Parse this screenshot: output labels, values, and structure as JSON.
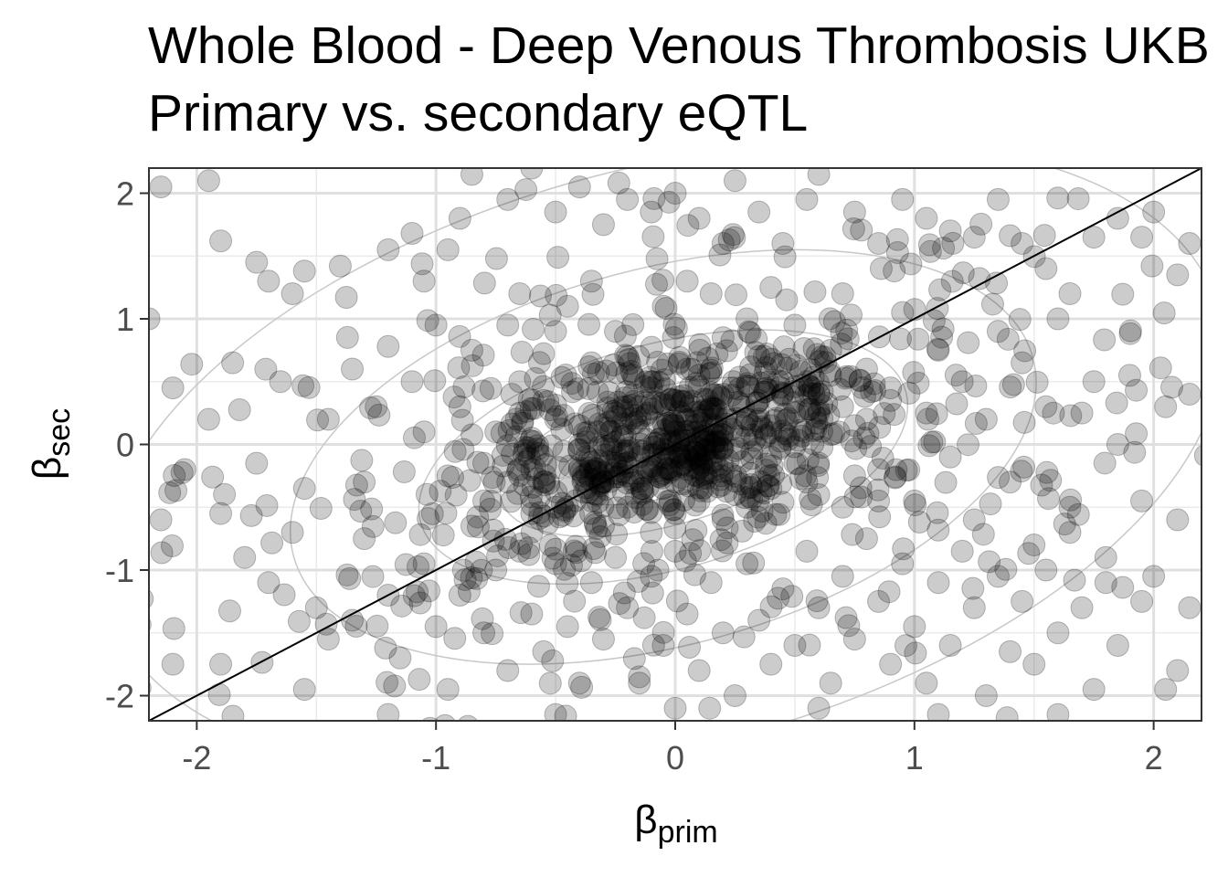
{
  "chart_data": {
    "type": "scatter",
    "title": "Whole Blood - Deep Venous Thrombosis UKB",
    "subtitle": "Primary vs. secondary eQTL",
    "xlabel": {
      "symbol": "β",
      "subscript": "prim"
    },
    "ylabel": {
      "symbol": "β",
      "subscript": "sec"
    },
    "xlim": [
      -2.2,
      2.2
    ],
    "ylim": [
      -2.2,
      2.2
    ],
    "x_ticks": [
      -2,
      -1,
      0,
      1,
      2
    ],
    "y_ticks": [
      -2,
      -1,
      0,
      1,
      2
    ],
    "x_tick_labels": [
      "-2",
      "-1",
      "0",
      "1",
      "2"
    ],
    "y_tick_labels": [
      "-2",
      "-1",
      "0",
      "1",
      "2"
    ],
    "grid": true,
    "reference_line": {
      "slope": 1,
      "intercept": 0,
      "color": "#000000"
    },
    "density_contours": true,
    "point_color": "#000000",
    "point_opacity": 0.2,
    "points_note": "approximately 1200 points; dense cluster near origin",
    "points": [
      [
        -2.15,
        2.05
      ],
      [
        -1.95,
        2.1
      ],
      [
        -1.9,
        1.62
      ],
      [
        -1.75,
        1.45
      ],
      [
        -1.7,
        1.3
      ],
      [
        -1.6,
        1.2
      ],
      [
        -1.55,
        1.38
      ],
      [
        -1.4,
        1.42
      ],
      [
        -1.2,
        1.55
      ],
      [
        -1.1,
        1.68
      ],
      [
        -1.05,
        1.3
      ],
      [
        -0.95,
        1.55
      ],
      [
        -0.9,
        1.8
      ],
      [
        -0.85,
        2.15
      ],
      [
        -0.7,
        1.95
      ],
      [
        -0.6,
        2.2
      ],
      [
        -0.5,
        1.85
      ],
      [
        -0.4,
        2.05
      ],
      [
        -0.3,
        1.75
      ],
      [
        -0.2,
        1.95
      ],
      [
        -0.1,
        1.85
      ],
      [
        0.0,
        2.0
      ],
      [
        0.1,
        1.8
      ],
      [
        0.2,
        1.6
      ],
      [
        0.25,
        2.1
      ],
      [
        0.35,
        1.85
      ],
      [
        0.45,
        1.6
      ],
      [
        0.55,
        1.95
      ],
      [
        0.6,
        2.15
      ],
      [
        0.75,
        1.85
      ],
      [
        0.85,
        1.6
      ],
      [
        0.95,
        1.95
      ],
      [
        1.05,
        1.8
      ],
      [
        1.15,
        1.7
      ],
      [
        1.25,
        1.65
      ],
      [
        1.35,
        1.95
      ],
      [
        1.45,
        1.6
      ],
      [
        1.55,
        1.4
      ],
      [
        1.65,
        1.2
      ],
      [
        1.75,
        1.65
      ],
      [
        1.85,
        1.8
      ],
      [
        1.95,
        1.65
      ],
      [
        2.0,
        1.85
      ],
      [
        2.1,
        1.35
      ],
      [
        2.15,
        1.6
      ],
      [
        -2.2,
        1.0
      ],
      [
        -2.1,
        0.45
      ],
      [
        -1.95,
        0.2
      ],
      [
        -1.85,
        0.65
      ],
      [
        -1.75,
        -0.15
      ],
      [
        -1.65,
        0.5
      ],
      [
        -1.55,
        -0.35
      ],
      [
        -1.45,
        0.2
      ],
      [
        -1.35,
        0.6
      ],
      [
        -1.3,
        -0.3
      ],
      [
        -1.25,
        0.3
      ],
      [
        -1.2,
        0.78
      ],
      [
        -1.1,
        0.5
      ],
      [
        -1.05,
        0.1
      ],
      [
        -1.0,
        0.95
      ],
      [
        -0.95,
        -0.25
      ],
      [
        -0.9,
        0.3
      ],
      [
        -0.85,
        0.75
      ],
      [
        -0.8,
        -0.45
      ],
      [
        -0.75,
        0.1
      ],
      [
        -0.7,
        0.95
      ],
      [
        -0.65,
        0.5
      ],
      [
        -0.6,
        -0.2
      ],
      [
        -0.55,
        0.35
      ],
      [
        -0.5,
        0.9
      ],
      [
        -0.45,
        -0.5
      ],
      [
        -0.4,
        0.15
      ],
      [
        -0.35,
        0.65
      ],
      [
        -0.3,
        -0.3
      ],
      [
        -0.25,
        0.25
      ],
      [
        -0.2,
        0.7
      ],
      [
        -0.15,
        -0.1
      ],
      [
        -0.1,
        0.45
      ],
      [
        -0.05,
        -0.35
      ],
      [
        0.0,
        0.1
      ],
      [
        0.05,
        0.6
      ],
      [
        0.1,
        -0.2
      ],
      [
        0.15,
        0.3
      ],
      [
        0.2,
        0.85
      ],
      [
        0.25,
        -0.4
      ],
      [
        0.3,
        0.2
      ],
      [
        0.35,
        0.7
      ],
      [
        0.4,
        -0.1
      ],
      [
        0.45,
        0.5
      ],
      [
        0.5,
        0.95
      ],
      [
        0.55,
        -0.3
      ],
      [
        0.6,
        0.25
      ],
      [
        0.65,
        0.75
      ],
      [
        0.7,
        -0.5
      ],
      [
        0.75,
        0.15
      ],
      [
        0.8,
        0.6
      ],
      [
        0.85,
        -0.2
      ],
      [
        0.9,
        0.35
      ],
      [
        0.95,
        1.05
      ],
      [
        1.0,
        -0.45
      ],
      [
        1.05,
        0.25
      ],
      [
        1.1,
        0.75
      ],
      [
        1.15,
        -0.1
      ],
      [
        1.2,
        0.5
      ],
      [
        1.25,
        -0.6
      ],
      [
        1.3,
        0.2
      ],
      [
        1.35,
        0.9
      ],
      [
        1.4,
        -0.3
      ],
      [
        1.45,
        0.65
      ],
      [
        1.5,
        -0.8
      ],
      [
        1.55,
        0.3
      ],
      [
        1.6,
        1.0
      ],
      [
        1.65,
        -0.5
      ],
      [
        1.7,
        0.25
      ],
      [
        1.75,
        0.5
      ],
      [
        1.8,
        -0.9
      ],
      [
        1.85,
        0.0
      ],
      [
        1.9,
        0.55
      ],
      [
        1.95,
        -0.45
      ],
      [
        2.05,
        0.3
      ],
      [
        2.1,
        -0.6
      ],
      [
        2.15,
        0.4
      ],
      [
        -2.15,
        -0.6
      ],
      [
        -2.05,
        -0.2
      ],
      [
        -1.9,
        -0.55
      ],
      [
        -1.8,
        -0.9
      ],
      [
        -1.7,
        -1.1
      ],
      [
        -1.6,
        -0.7
      ],
      [
        -1.5,
        -1.3
      ],
      [
        -1.45,
        -1.55
      ],
      [
        -1.35,
        -1.4
      ],
      [
        -1.3,
        -0.75
      ],
      [
        -1.2,
        -1.2
      ],
      [
        -1.15,
        -1.7
      ],
      [
        -1.05,
        -0.95
      ],
      [
        -1.0,
        -1.45
      ],
      [
        -0.95,
        -1.95
      ],
      [
        -0.9,
        -1.2
      ],
      [
        -0.85,
        -0.65
      ],
      [
        -0.8,
        -1.5
      ],
      [
        -0.75,
        -1.0
      ],
      [
        -0.7,
        -1.8
      ],
      [
        -0.65,
        -0.85
      ],
      [
        -0.6,
        -1.35
      ],
      [
        -0.55,
        -1.65
      ],
      [
        -0.5,
        -0.95
      ],
      [
        -0.45,
        -1.45
      ],
      [
        -0.4,
        -1.9
      ],
      [
        -0.35,
        -1.1
      ],
      [
        -0.3,
        -1.55
      ],
      [
        -0.25,
        -0.9
      ],
      [
        -0.2,
        -1.3
      ],
      [
        -0.15,
        -1.85
      ],
      [
        -0.1,
        -1.05
      ],
      [
        -0.05,
        -1.6
      ],
      [
        0.0,
        -0.85
      ],
      [
        0.05,
        -1.35
      ],
      [
        0.1,
        -1.8
      ],
      [
        0.15,
        -1.1
      ],
      [
        0.2,
        -1.5
      ],
      [
        0.25,
        -2.0
      ],
      [
        0.3,
        -0.95
      ],
      [
        0.35,
        -1.4
      ],
      [
        0.4,
        -1.75
      ],
      [
        0.45,
        -1.15
      ],
      [
        0.5,
        -1.6
      ],
      [
        0.55,
        -0.85
      ],
      [
        0.6,
        -1.3
      ],
      [
        0.65,
        -1.9
      ],
      [
        0.7,
        -1.05
      ],
      [
        0.75,
        -1.55
      ],
      [
        0.8,
        -0.75
      ],
      [
        0.85,
        -1.25
      ],
      [
        0.9,
        -1.75
      ],
      [
        0.95,
        -0.95
      ],
      [
        1.0,
        -1.45
      ],
      [
        1.05,
        -1.9
      ],
      [
        1.1,
        -1.1
      ],
      [
        1.15,
        -1.6
      ],
      [
        1.2,
        -0.85
      ],
      [
        1.25,
        -1.3
      ],
      [
        1.3,
        -2.0
      ],
      [
        1.35,
        -1.05
      ],
      [
        1.4,
        -1.65
      ],
      [
        1.45,
        -1.25
      ],
      [
        1.5,
        -1.75
      ],
      [
        1.55,
        -1.0
      ],
      [
        1.6,
        -1.5
      ],
      [
        1.65,
        -0.7
      ],
      [
        1.7,
        -1.3
      ],
      [
        1.75,
        -1.95
      ],
      [
        1.8,
        -1.1
      ],
      [
        1.85,
        -1.6
      ],
      [
        1.95,
        -1.25
      ],
      [
        2.0,
        -1.05
      ],
      [
        2.1,
        -1.8
      ],
      [
        2.15,
        -1.3
      ],
      [
        -0.3,
        -0.3
      ],
      [
        -0.25,
        -0.15
      ],
      [
        -0.2,
        -0.25
      ],
      [
        -0.15,
        -0.05
      ],
      [
        -0.1,
        -0.2
      ],
      [
        -0.05,
        0.0
      ],
      [
        0.0,
        -0.1
      ],
      [
        0.05,
        -0.2
      ],
      [
        0.1,
        0.05
      ],
      [
        0.15,
        -0.15
      ],
      [
        0.2,
        0.1
      ],
      [
        0.25,
        -0.05
      ],
      [
        0.3,
        0.2
      ],
      [
        -0.35,
        -0.45
      ],
      [
        -0.4,
        -0.2
      ],
      [
        -0.45,
        -0.35
      ],
      [
        -0.5,
        -0.5
      ],
      [
        -0.55,
        -0.3
      ],
      [
        -0.6,
        -0.55
      ],
      [
        0.35,
        0.35
      ],
      [
        0.4,
        0.15
      ],
      [
        0.45,
        0.4
      ],
      [
        0.5,
        0.25
      ],
      [
        0.55,
        0.5
      ],
      [
        0.6,
        0.4
      ],
      [
        0.65,
        0.55
      ],
      [
        -0.2,
        0.3
      ],
      [
        -0.1,
        0.5
      ],
      [
        0.0,
        0.35
      ],
      [
        0.1,
        0.55
      ],
      [
        0.2,
        0.4
      ],
      [
        -0.3,
        -0.65
      ],
      [
        -0.2,
        -0.5
      ],
      [
        -0.1,
        -0.7
      ],
      [
        0.0,
        -0.55
      ],
      [
        0.1,
        -0.45
      ],
      [
        0.2,
        -0.6
      ],
      [
        0.3,
        -0.5
      ],
      [
        -0.6,
        0.05
      ],
      [
        -0.5,
        0.2
      ],
      [
        -0.4,
        0.0
      ],
      [
        0.4,
        -0.35
      ],
      [
        0.5,
        -0.15
      ],
      [
        0.6,
        -0.4
      ],
      [
        0.7,
        0.3
      ],
      [
        0.8,
        0.2
      ],
      [
        0.9,
        0.45
      ],
      [
        -0.8,
        -0.15
      ],
      [
        -0.7,
        -0.3
      ],
      [
        -0.65,
        0.25
      ],
      [
        0.75,
        -0.25
      ],
      [
        0.85,
        -0.45
      ],
      [
        -0.25,
        0.9
      ],
      [
        -0.05,
        1.1
      ],
      [
        0.15,
        1.2
      ],
      [
        0.3,
        1.0
      ],
      [
        -0.45,
        1.1
      ],
      [
        -0.35,
        1.3
      ],
      [
        0.05,
        1.3
      ],
      [
        0.4,
        1.25
      ],
      [
        0.7,
        1.2
      ],
      [
        -0.65,
        1.2
      ],
      [
        -0.15,
        -1.9
      ],
      [
        0.0,
        -2.1
      ],
      [
        -0.5,
        -2.15
      ],
      [
        0.6,
        -2.1
      ],
      [
        1.1,
        -2.15
      ],
      [
        -1.2,
        -2.15
      ],
      [
        -1.9,
        -1.75
      ],
      [
        -2.1,
        -1.75
      ],
      [
        -1.55,
        -1.95
      ],
      [
        1.6,
        -2.15
      ],
      [
        2.05,
        -1.95
      ]
    ]
  }
}
